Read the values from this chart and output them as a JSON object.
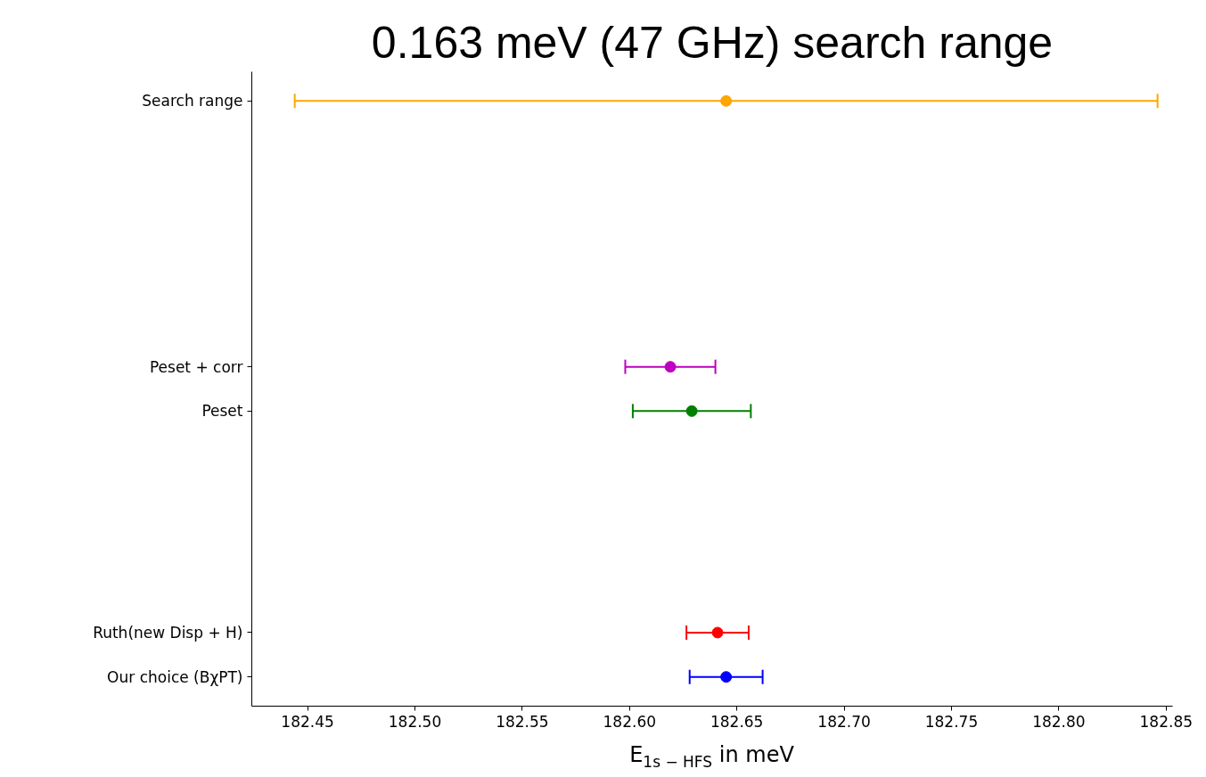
{
  "chart_data": {
    "type": "scatter",
    "orientation": "horizontal",
    "title": "0.163 meV (47 GHz) search range",
    "xlabel": "E$_{1s − HFS}$ in meV",
    "categories": [
      "Search range",
      null,
      null,
      null,
      null,
      null,
      "Peset + corr",
      "Peset",
      null,
      null,
      null,
      null,
      "Ruth(new Disp + H)",
      "Our choice (BχPT)"
    ],
    "values": [
      182.645,
      null,
      null,
      null,
      null,
      null,
      182.619,
      182.629,
      null,
      null,
      null,
      null,
      182.641,
      182.645
    ],
    "errors": [
      0.201,
      null,
      null,
      null,
      null,
      null,
      0.021,
      0.0275,
      null,
      null,
      null,
      null,
      0.0145,
      0.017
    ],
    "colors": [
      "#ffa500",
      null,
      null,
      null,
      null,
      null,
      "#bf00bf",
      "#008000",
      null,
      null,
      null,
      null,
      "#ff0000",
      "#0000ff"
    ],
    "xlim": [
      182.424,
      182.853
    ],
    "xticks": [
      182.45,
      {
        "value": 182.5,
        "label": "182.50"
      },
      182.55,
      {
        "value": 182.6,
        "label": "182.60"
      },
      182.65,
      {
        "value": 182.7,
        "label": "182.70"
      },
      182.75,
      {
        "value": 182.8,
        "label": "182.80"
      },
      182.85
    ],
    "grid": false,
    "marker": "circle"
  }
}
